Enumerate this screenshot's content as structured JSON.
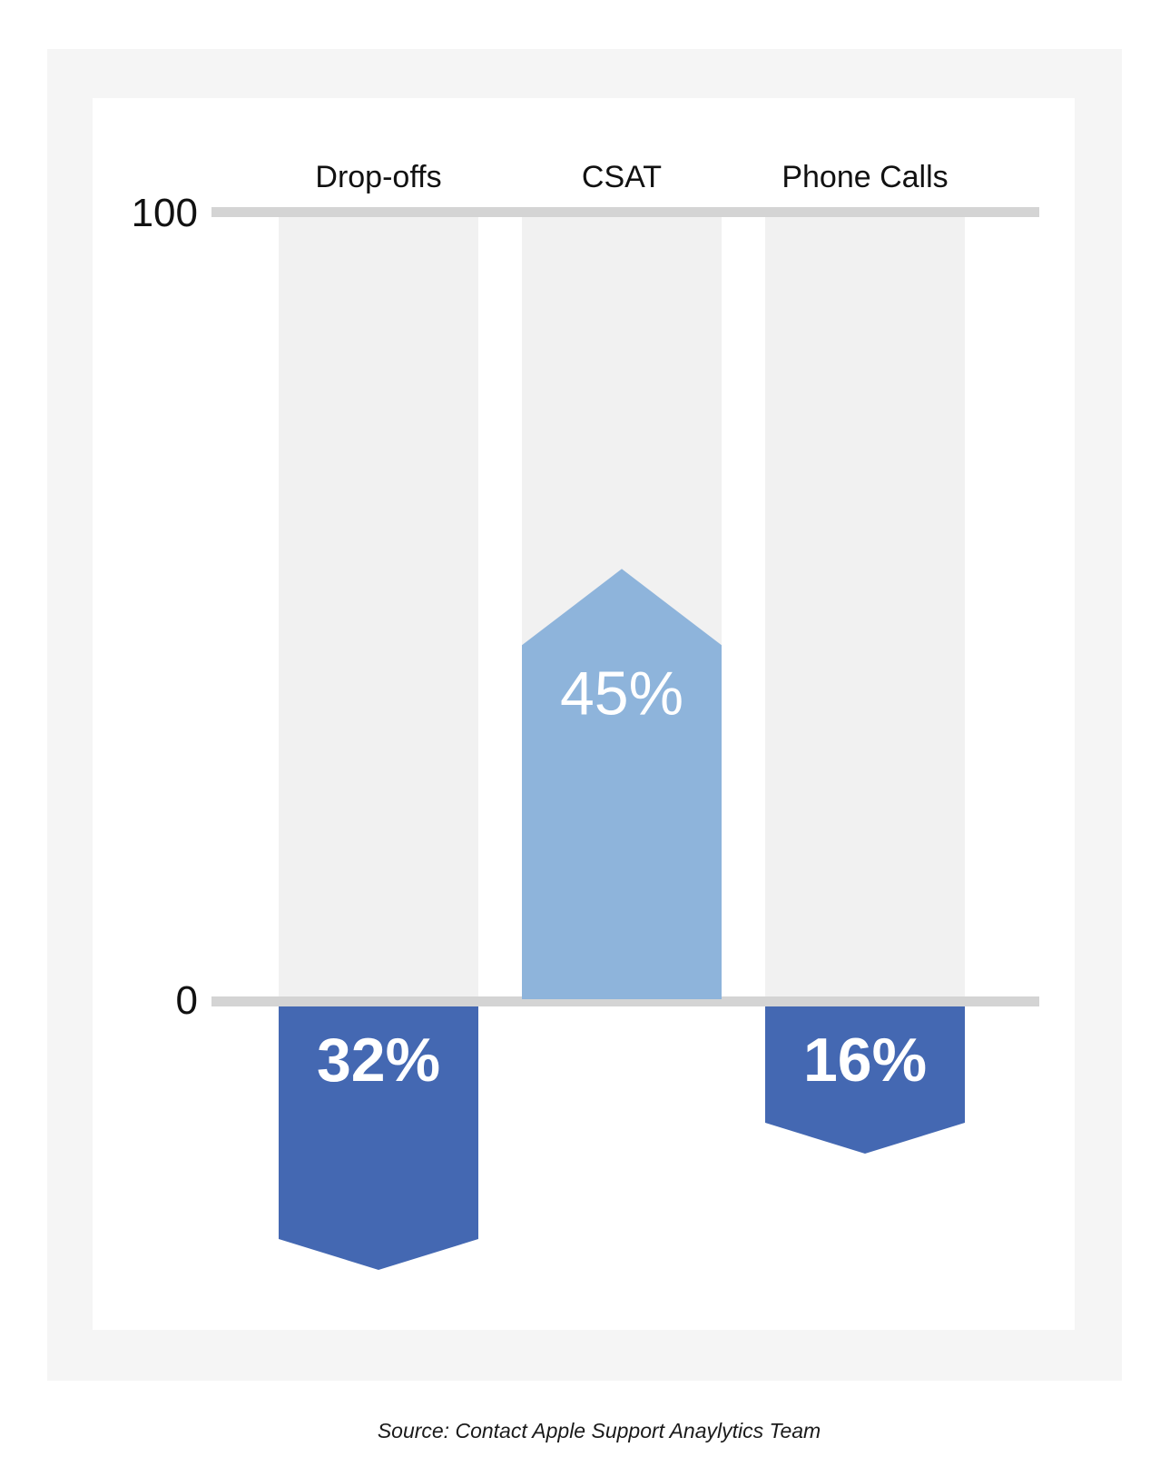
{
  "chart_data": {
    "type": "bar",
    "categories": [
      "Drop-offs",
      "CSAT",
      "Phone Calls"
    ],
    "values": [
      -32,
      45,
      -16
    ],
    "value_labels": [
      "32%",
      "45%",
      "16%"
    ],
    "y_ticks": [
      "100",
      "0"
    ],
    "ylim": [
      0,
      100
    ],
    "grid": false,
    "colors": {
      "negative": "#4468b2",
      "positive": "#8eb4db",
      "track": "#f1f1f1",
      "axis_line": "#d4d4d4",
      "value_text": "#ffffff"
    }
  },
  "source": "Source: Contact Apple Support Anaylytics Team"
}
